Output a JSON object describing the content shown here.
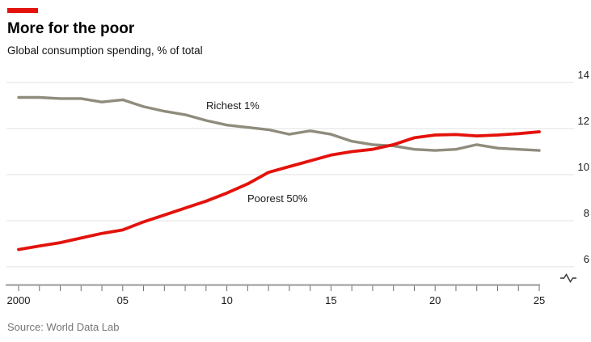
{
  "header": {
    "title": "More for the poor",
    "subtitle": "Global consumption spending, % of total"
  },
  "source": "Source: World Data Lab",
  "colors": {
    "accent_red": "#E3120B",
    "richest_line": "#8F8C7D",
    "poorest_line": "#E3120B",
    "gridline": "#E1E1E1",
    "axis": "#999999",
    "axis_tick": "#6e6e6e",
    "tick_text": "#1a1a1a",
    "source_text": "#757575",
    "axis_break": "#333333"
  },
  "chart_data": {
    "type": "line",
    "title": "More for the poor",
    "subtitle": "Global consumption spending, % of total",
    "x": [
      2000,
      2001,
      2002,
      2003,
      2004,
      2005,
      2006,
      2007,
      2008,
      2009,
      2010,
      2011,
      2012,
      2013,
      2014,
      2015,
      2016,
      2017,
      2018,
      2019,
      2020,
      2021,
      2022,
      2023,
      2024,
      2025
    ],
    "series": [
      {
        "name": "Richest 1%",
        "color": "#8F8C7D",
        "values": [
          13.35,
          13.35,
          13.3,
          13.3,
          13.15,
          13.25,
          12.95,
          12.75,
          12.6,
          12.35,
          12.15,
          12.05,
          11.95,
          11.75,
          11.9,
          11.75,
          11.45,
          11.3,
          11.25,
          11.1,
          11.05,
          11.1,
          11.3,
          11.15,
          11.1,
          11.05
        ]
      },
      {
        "name": "Poorest 50%",
        "color": "#E3120B",
        "values": [
          6.75,
          6.9,
          7.05,
          7.25,
          7.45,
          7.6,
          7.95,
          8.25,
          8.55,
          8.85,
          9.2,
          9.6,
          10.1,
          10.35,
          10.6,
          10.85,
          11.0,
          11.1,
          11.3,
          11.6,
          11.72,
          11.74,
          11.68,
          11.72,
          11.78,
          11.86
        ]
      }
    ],
    "ylim": [
      6,
      14
    ],
    "y_ticks": [
      6,
      8,
      10,
      12,
      14
    ],
    "y_axis_side": "right",
    "x_tick_years": [
      2000,
      2005,
      2010,
      2015,
      2020,
      2025
    ],
    "x_tick_labels": [
      "2000",
      "05",
      "10",
      "15",
      "20",
      "25"
    ],
    "grid": "horizontal",
    "axis_break": true,
    "legend_position": "inline-labels"
  }
}
